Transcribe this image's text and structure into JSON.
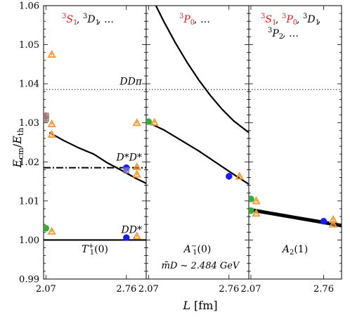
{
  "chart_data": {
    "type": "scatter",
    "ylabel": "Ecm/Eth",
    "xlabel": "L [fm]",
    "ylim": [
      0.99,
      1.06
    ],
    "yticks": [
      "0.99",
      "1.00",
      "1.01",
      "1.02",
      "1.03",
      "1.04",
      "1.05",
      "1.06"
    ],
    "footer_note": "m̄D ~ 2.484 GeV",
    "threshold_labels": {
      "ddpi": "DDπ",
      "dstar_dstar": "D*D*",
      "d_dstar": "DD*"
    },
    "thresholds": {
      "ddpi": 1.0385,
      "dstar_dstar": 1.0185,
      "d_dstar": 1.0
    },
    "panels": [
      {
        "irrep_label": "T1+(0)",
        "partial_waves": [
          "3S1",
          "3D1",
          "..."
        ],
        "xlim": [
          2.05,
          2.93
        ],
        "xticks": [
          "2.07",
          "2.76"
        ],
        "curves": [
          {
            "name": "D*D* free",
            "x": [
              2.1,
              2.22,
              2.35,
              2.48,
              2.6,
              2.72,
              2.84,
              2.93
            ],
            "y": [
              1.0275,
              1.0255,
              1.0236,
              1.022,
              1.0197,
              1.0178,
              1.0158,
              1.0145
            ]
          }
        ],
        "points": [
          {
            "x": 2.07,
            "y": 1.0318,
            "err": 0.0009,
            "color": "#9a6f6f",
            "marker": "square"
          },
          {
            "x": 2.07,
            "y": 1.031,
            "err": 0.0008,
            "color": "#9a6f6f",
            "marker": "square"
          },
          {
            "x": 2.12,
            "y": 1.0475,
            "err": 0.0003,
            "color": "#f39c3c",
            "marker": "triangle"
          },
          {
            "x": 2.12,
            "y": 1.0297,
            "err": 0.0003,
            "color": "#f39c3c",
            "marker": "triangle"
          },
          {
            "x": 2.12,
            "y": 1.027,
            "err": 0.0003,
            "color": "#f39c3c",
            "marker": "triangle"
          },
          {
            "x": 2.12,
            "y": 1.0022,
            "err": 0.0003,
            "color": "#f39c3c",
            "marker": "triangle"
          },
          {
            "x": 2.07,
            "y": 1.003,
            "err": 0.0003,
            "color": "#3aa83a",
            "marker": "circle"
          },
          {
            "x": 2.76,
            "y": 1.0185,
            "err": 0.0007,
            "color": "#1a1aff",
            "marker": "circle"
          },
          {
            "x": 2.76,
            "y": 1.0178,
            "err": 0.0005,
            "color": "#8080c0",
            "marker": "square"
          },
          {
            "x": 2.76,
            "y": 1.0006,
            "err": 0.0003,
            "color": "#1a1aff",
            "marker": "circle"
          },
          {
            "x": 2.85,
            "y": 1.03,
            "err": 0.0003,
            "color": "#f39c3c",
            "marker": "triangle"
          },
          {
            "x": 2.85,
            "y": 1.0187,
            "err": 0.0003,
            "color": "#f39c3c",
            "marker": "triangle"
          },
          {
            "x": 2.85,
            "y": 1.0168,
            "err": 0.0003,
            "color": "#f39c3c",
            "marker": "triangle"
          },
          {
            "x": 2.85,
            "y": 1.001,
            "err": 0.0003,
            "color": "#f39c3c",
            "marker": "triangle"
          }
        ]
      },
      {
        "irrep_label": "A1−(0)",
        "partial_waves": [
          "3P0",
          "..."
        ],
        "xlim": [
          2.05,
          2.93
        ],
        "xticks": [
          "2.07",
          "2.76"
        ],
        "curves": [
          {
            "name": "upper",
            "x": [
              2.1,
              2.2,
              2.3,
              2.4,
              2.5,
              2.6,
              2.7,
              2.8,
              2.93
            ],
            "y": [
              1.062,
              1.056,
              1.0505,
              1.0455,
              1.041,
              1.037,
              1.0335,
              1.0305,
              1.0275
            ]
          },
          {
            "name": "lower",
            "x": [
              2.05,
              2.2,
              2.35,
              2.5,
              2.65,
              2.8,
              2.93
            ],
            "y": [
              1.0303,
              1.0282,
              1.0255,
              1.0228,
              1.0198,
              1.0168,
              1.0143
            ]
          }
        ],
        "points": [
          {
            "x": 2.07,
            "y": 1.0303,
            "err": 0.0005,
            "color": "#3aa83a",
            "marker": "circle"
          },
          {
            "x": 2.12,
            "y": 1.0301,
            "err": 0.0003,
            "color": "#f39c3c",
            "marker": "triangle"
          },
          {
            "x": 2.76,
            "y": 1.0163,
            "err": 0.0009,
            "color": "#1a1aff",
            "marker": "circle"
          },
          {
            "x": 2.85,
            "y": 1.0163,
            "err": 0.0003,
            "color": "#f39c3c",
            "marker": "triangle"
          }
        ]
      },
      {
        "irrep_label": "A2(1)",
        "partial_waves": [
          "3S1",
          "3P0",
          "3D1",
          "3P2",
          "..."
        ],
        "xlim": [
          2.05,
          2.93
        ],
        "xticks": [
          "2.07",
          "2.76"
        ],
        "curves": [
          {
            "name": "band",
            "x": [
              2.05,
              2.2,
              2.35,
              2.5,
              2.65,
              2.8,
              2.93
            ],
            "y": [
              1.0078,
              1.0071,
              1.0064,
              1.0057,
              1.005,
              1.0043,
              1.0037
            ],
            "band": 0.0006
          }
        ],
        "points": [
          {
            "x": 2.07,
            "y": 1.0105,
            "err": 0.0003,
            "color": "#3aa83a",
            "marker": "circle"
          },
          {
            "x": 2.07,
            "y": 1.0075,
            "err": 0.0005,
            "color": "#3aa83a",
            "marker": "circle"
          },
          {
            "x": 2.12,
            "y": 1.01,
            "err": 0.0003,
            "color": "#f39c3c",
            "marker": "triangle"
          },
          {
            "x": 2.12,
            "y": 1.0068,
            "err": 0.0003,
            "color": "#f39c3c",
            "marker": "triangle"
          },
          {
            "x": 2.76,
            "y": 1.0048,
            "err": 0.0005,
            "color": "#1a1aff",
            "marker": "circle"
          },
          {
            "x": 2.85,
            "y": 1.0052,
            "err": 0.0003,
            "color": "#f39c3c",
            "marker": "triangle"
          },
          {
            "x": 2.85,
            "y": 1.004,
            "err": 0.0003,
            "color": "#f39c3c",
            "marker": "triangle"
          }
        ]
      }
    ]
  }
}
